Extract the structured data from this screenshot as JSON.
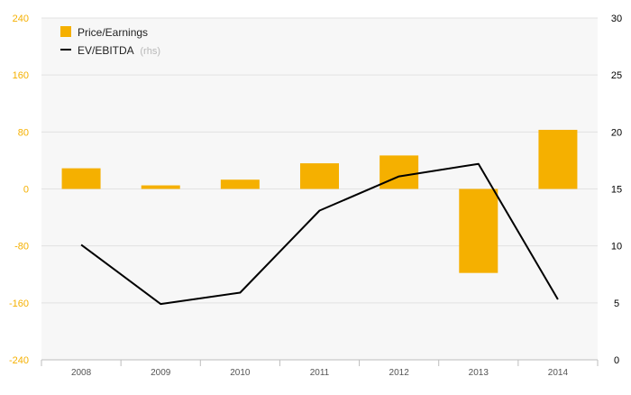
{
  "chart_data": {
    "type": "bar",
    "categories": [
      "2008",
      "2009",
      "2010",
      "2011",
      "2012",
      "2013",
      "2014"
    ],
    "series": [
      {
        "name": "Price/Earnings",
        "type": "bar",
        "axis": "left",
        "color": "#F5B000",
        "values": [
          29,
          5,
          13,
          36,
          47,
          -118,
          83
        ]
      },
      {
        "name": "EV/EBITDA",
        "type": "line",
        "axis": "right",
        "color": "#000000",
        "values": [
          10.1,
          4.9,
          5.9,
          13.1,
          16.1,
          17.2,
          5.3
        ]
      }
    ],
    "legend": {
      "position": "top-left",
      "entries": [
        {
          "label": "Price/Earnings",
          "suffix": ""
        },
        {
          "label": "EV/EBITDA",
          "suffix": "(rhs)"
        }
      ]
    },
    "y_left": {
      "ticks": [
        "240",
        "160",
        "80",
        "0",
        "-80",
        "-160",
        "-240"
      ],
      "tick_values": [
        240,
        160,
        80,
        0,
        -80,
        -160,
        -240
      ],
      "range": [
        -240,
        240
      ],
      "color": "#F5B000"
    },
    "y_right": {
      "ticks": [
        "30",
        "25",
        "20",
        "15",
        "10",
        "5",
        "0"
      ],
      "tick_values": [
        30,
        25,
        20,
        15,
        10,
        5,
        0
      ],
      "range": [
        0,
        30
      ],
      "color": "#000000"
    },
    "grid": true
  }
}
